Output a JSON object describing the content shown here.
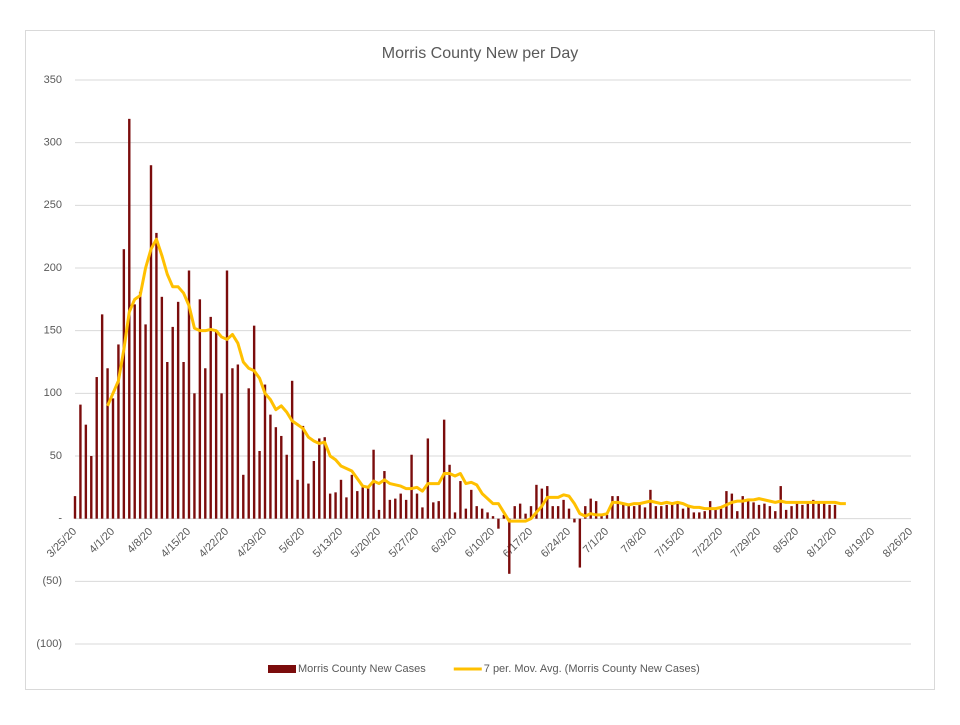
{
  "chart_data": {
    "type": "bar-line",
    "title": "Morris County New per Day",
    "categories": [
      "3/25/20",
      null,
      null,
      null,
      null,
      null,
      null,
      "4/1/20",
      null,
      null,
      null,
      null,
      null,
      null,
      "4/8/20",
      null,
      null,
      null,
      null,
      null,
      null,
      "4/15/20",
      null,
      null,
      null,
      null,
      null,
      null,
      "4/22/20",
      null,
      null,
      null,
      null,
      null,
      null,
      "4/29/20",
      null,
      null,
      null,
      null,
      null,
      null,
      "5/6/20",
      null,
      null,
      null,
      null,
      null,
      null,
      "5/13/20",
      null,
      null,
      null,
      null,
      null,
      null,
      "5/20/20",
      null,
      null,
      null,
      null,
      null,
      null,
      "5/27/20",
      null,
      null,
      null,
      null,
      null,
      null,
      "6/3/20",
      null,
      null,
      null,
      null,
      null,
      null,
      "6/10/20",
      null,
      null,
      null,
      null,
      null,
      null,
      "6/17/20",
      null,
      null,
      null,
      null,
      null,
      null,
      "6/24/20",
      null,
      null,
      null,
      null,
      null,
      null,
      "7/1/20",
      null,
      null,
      null,
      null,
      null,
      null,
      "7/8/20",
      null,
      null,
      null,
      null,
      null,
      null,
      "7/15/20",
      null,
      null,
      null,
      null,
      null,
      null,
      "7/22/20",
      null,
      null,
      null,
      null,
      null,
      null,
      "7/29/20",
      null,
      null,
      null,
      null,
      null,
      null,
      "8/5/20",
      null,
      null,
      null,
      null,
      null,
      null,
      "8/12/20",
      null,
      null,
      null,
      null,
      null,
      null,
      "8/19/20",
      null,
      null,
      null,
      null,
      null,
      null,
      "8/26/20"
    ],
    "series": [
      {
        "name": "Morris County New Cases",
        "color": "#7b0c0c",
        "kind": "bar",
        "values": [
          18,
          91,
          75,
          50,
          113,
          163,
          120,
          96,
          139,
          215,
          319,
          171,
          181,
          155,
          282,
          228,
          177,
          125,
          153,
          173,
          125,
          198,
          100,
          175,
          120,
          161,
          150,
          100,
          198,
          120,
          123,
          35,
          104,
          154,
          54,
          107,
          83,
          73,
          66,
          51,
          110,
          31,
          74,
          28,
          46,
          64,
          65,
          20,
          21,
          31,
          17,
          35,
          22,
          25,
          25,
          55,
          7,
          38,
          15,
          16,
          20,
          15,
          51,
          20,
          9,
          64,
          13,
          14,
          79,
          43,
          5,
          30,
          8,
          23,
          10,
          8,
          5,
          2,
          -8,
          3,
          -44,
          10,
          12,
          4,
          10,
          27,
          24,
          26,
          10,
          10,
          15,
          8,
          -3,
          -39,
          10,
          16,
          14,
          4,
          3,
          18,
          18,
          12,
          11,
          10,
          12,
          9,
          23,
          10,
          10,
          11,
          11,
          13,
          8,
          11,
          5,
          5,
          6,
          14,
          7,
          8,
          22,
          20,
          6,
          18,
          15,
          13,
          11,
          12,
          10,
          6,
          26,
          7,
          10,
          12,
          11,
          12,
          15,
          13,
          12,
          11,
          11,
          null,
          null,
          null,
          null,
          null,
          null,
          null,
          null,
          null,
          null,
          null,
          null,
          null,
          null
        ]
      },
      {
        "name": "7 per. Mov. Avg. (Morris County New Cases)",
        "color": "#ffc000",
        "kind": "line",
        "values": [
          null,
          null,
          null,
          null,
          null,
          null,
          90,
          100,
          110,
          135,
          165,
          175,
          178,
          200,
          215,
          223,
          210,
          195,
          185,
          185,
          180,
          170,
          152,
          150,
          150,
          151,
          150,
          145,
          143,
          147,
          140,
          125,
          120,
          118,
          112,
          100,
          95,
          87,
          90,
          85,
          78,
          75,
          72,
          65,
          62,
          60,
          61,
          50,
          47,
          42,
          40,
          38,
          32,
          26,
          25,
          30,
          28,
          31,
          28,
          27,
          26,
          24,
          24,
          25,
          22,
          28,
          28,
          28,
          36,
          36,
          34,
          36,
          28,
          29,
          27,
          20,
          16,
          12,
          12,
          5,
          -2,
          -2,
          -2,
          -2,
          0,
          5,
          10,
          17,
          17,
          17,
          19,
          18,
          12,
          4,
          2,
          4,
          3,
          3,
          4,
          13,
          13,
          12,
          11,
          12,
          12,
          13,
          14,
          13,
          12,
          13,
          12,
          13,
          12,
          10,
          9,
          9,
          8,
          8,
          8,
          9,
          11,
          13,
          14,
          14,
          15,
          15,
          16,
          15,
          14,
          13,
          14,
          13,
          13,
          13,
          13,
          13,
          13,
          13,
          13,
          13,
          13,
          12,
          12,
          null,
          null,
          null,
          null,
          null,
          null,
          null,
          null,
          null,
          null,
          null,
          null
        ]
      }
    ],
    "ylim": [
      -100,
      350
    ],
    "yticks": [
      {
        "value": -100,
        "label": "(100)"
      },
      {
        "value": -50,
        "label": "(50)"
      },
      {
        "value": 0,
        "label": "-"
      },
      50,
      100,
      150,
      200,
      250,
      300,
      350
    ],
    "grid": true,
    "legend": "bottom"
  }
}
